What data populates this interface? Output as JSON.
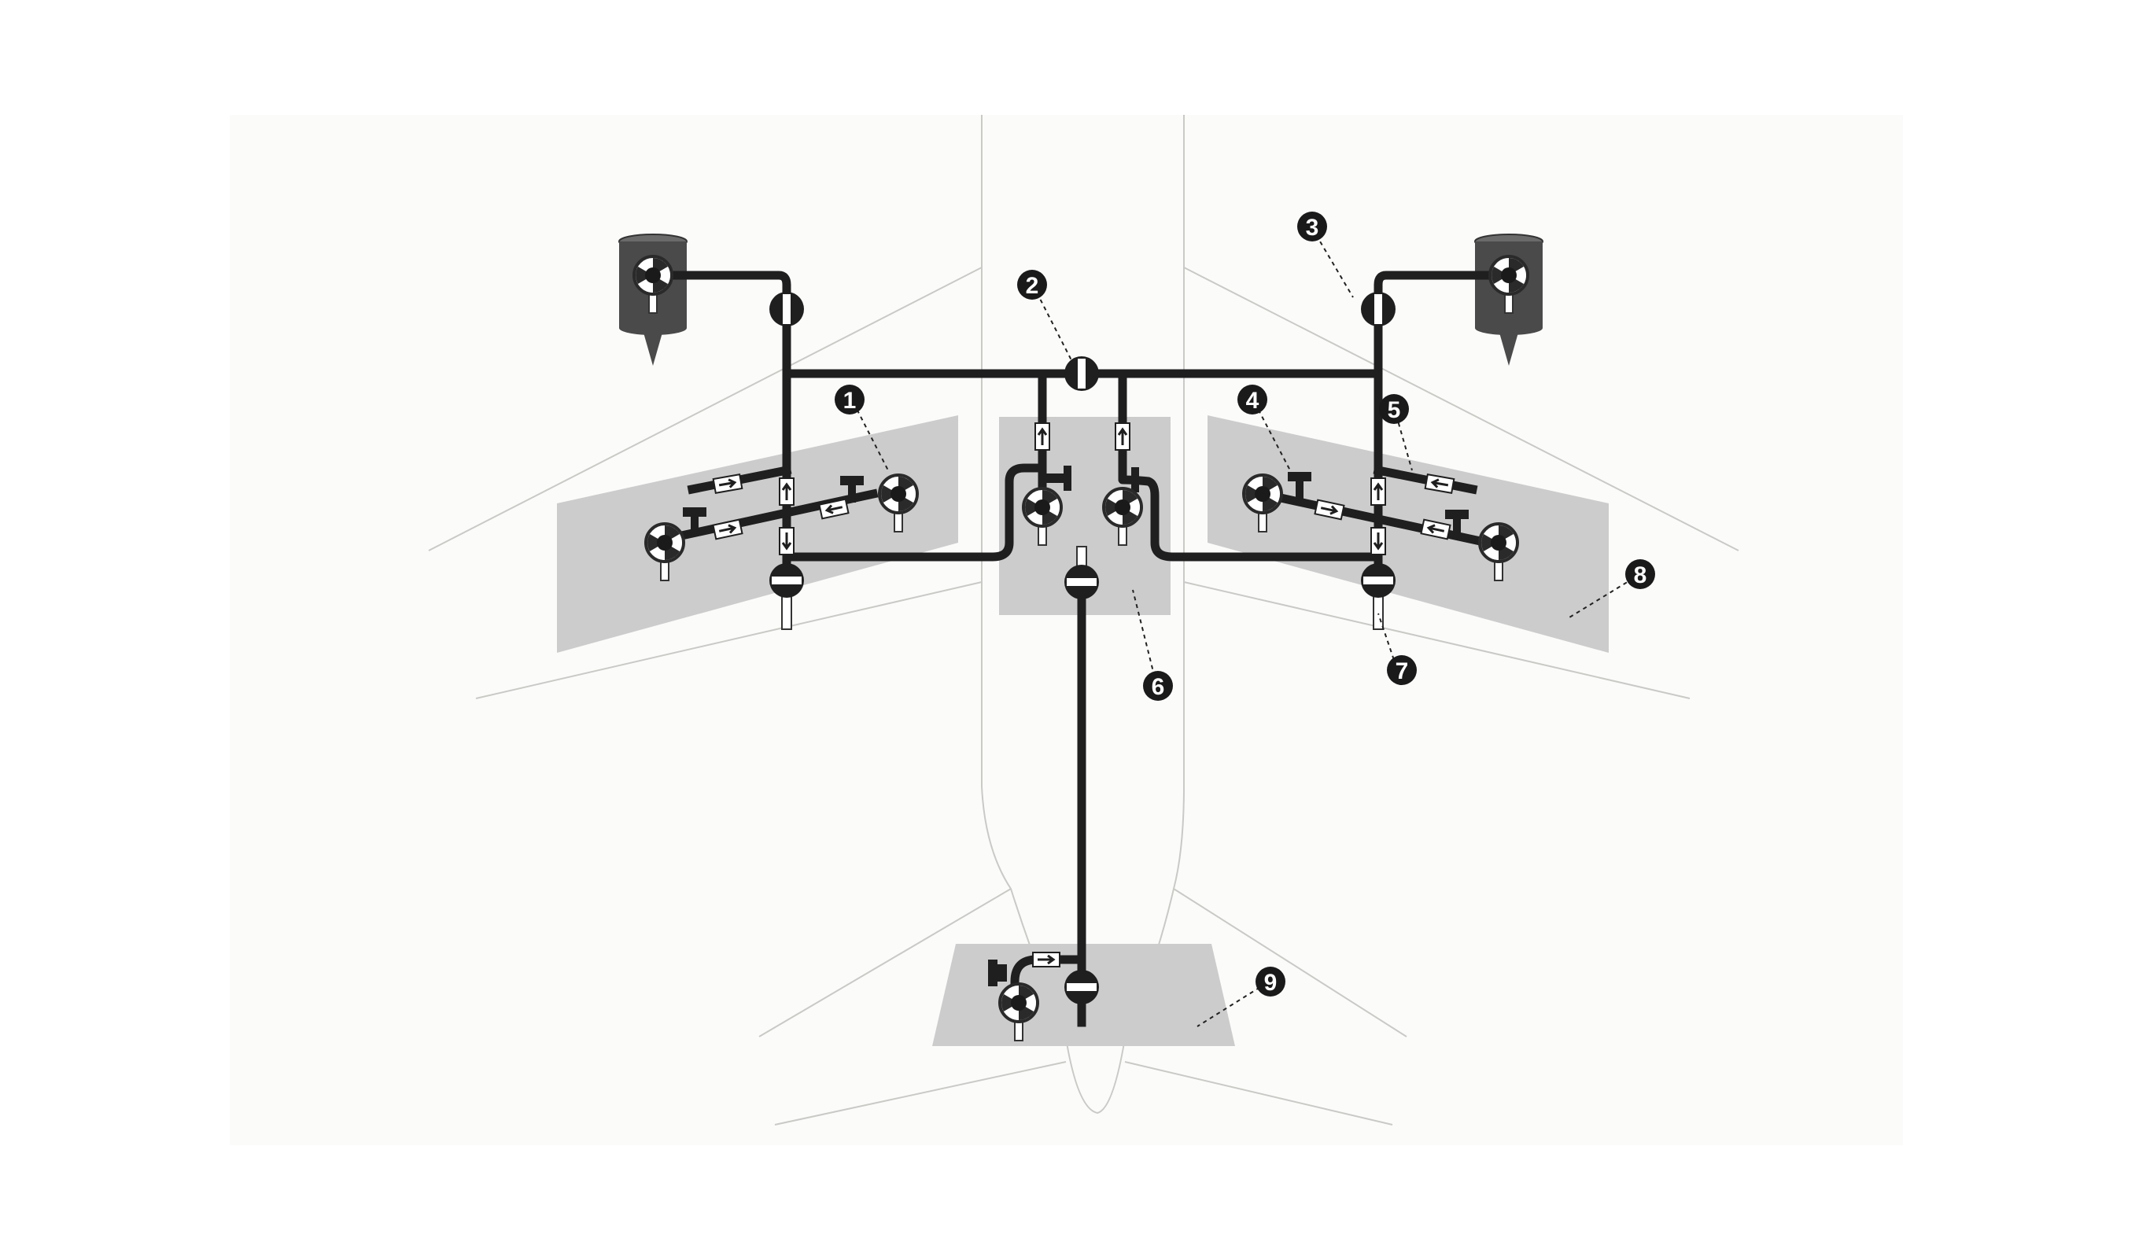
{
  "diagram": {
    "callouts": [
      {
        "id": 1,
        "label": "1"
      },
      {
        "id": 2,
        "label": "2"
      },
      {
        "id": 3,
        "label": "3"
      },
      {
        "id": 4,
        "label": "4"
      },
      {
        "id": 5,
        "label": "5"
      },
      {
        "id": 6,
        "label": "6"
      },
      {
        "id": 7,
        "label": "7"
      },
      {
        "id": 8,
        "label": "8"
      },
      {
        "id": 9,
        "label": "9"
      }
    ],
    "colors": {
      "canvas": "#fbfcfa",
      "airframe_outline": "#c9cac6",
      "tank_zone": "#cccccc",
      "pipe": "#1f1f1f",
      "engine_pod": "#4a4a4a",
      "callout_fill": "#1a1a1a",
      "callout_text": "#ffffff"
    },
    "icons": [
      "fuel-pump-icon",
      "crossfeed-valve-icon",
      "shutoff-valve-icon",
      "flow-direction-arrow-icon",
      "engine-pod-icon"
    ]
  }
}
